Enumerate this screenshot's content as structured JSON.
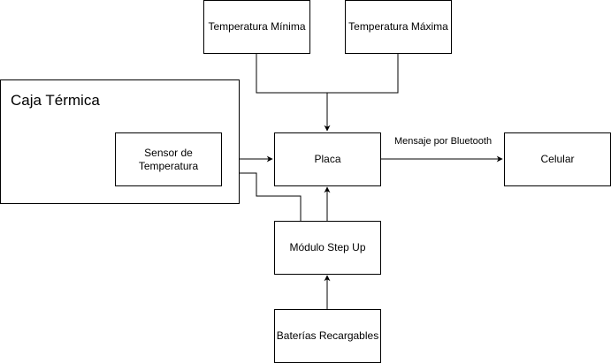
{
  "container": {
    "title": "Caja Térmica"
  },
  "nodes": {
    "temp_min": "Temperatura Mínima",
    "temp_max": "Temperatura Máxima",
    "sensor": "Sensor de\nTemperatura",
    "placa": "Placa",
    "celular": "Celular",
    "step_up": "Módulo Step Up",
    "baterias": "Baterías Recargables"
  },
  "edges": {
    "bluetooth": "Mensaje por Bluetooth"
  }
}
